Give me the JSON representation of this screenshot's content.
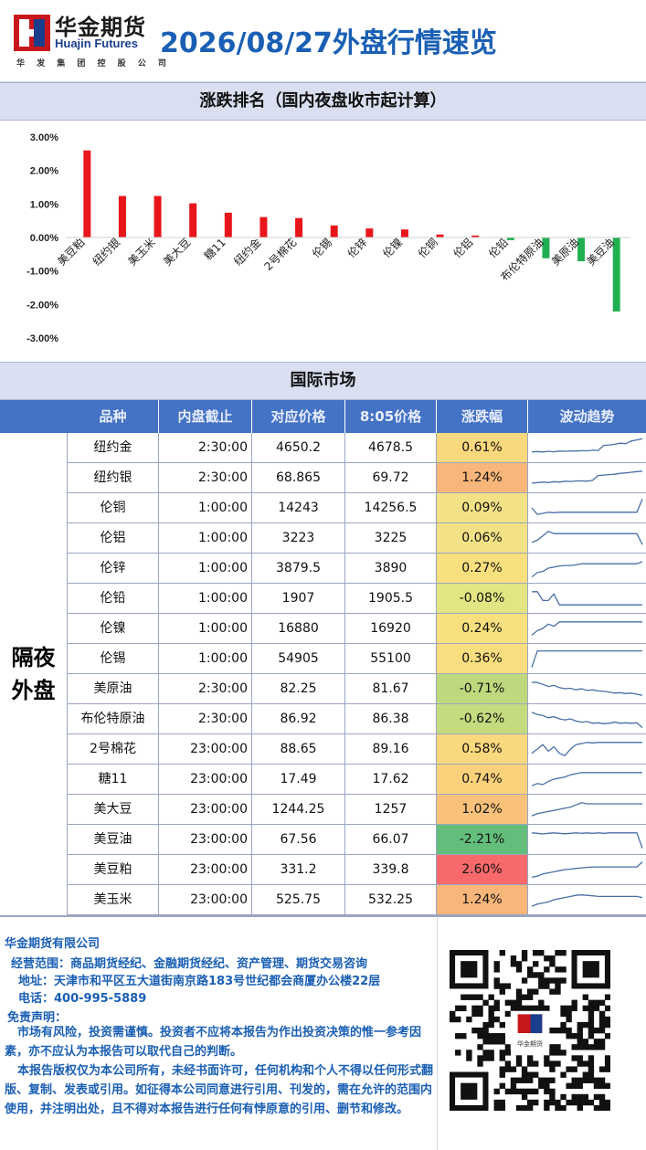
{
  "header": {
    "logo_cn": "华金期货",
    "logo_en": "Huajin Futures",
    "logo_sub": "华 发 集 团 控 股 公 司",
    "title": "2026/08/27外盘行情速览"
  },
  "ranking_section": {
    "title": "涨跌排名（国内夜盘收市起计算）"
  },
  "chart_data": {
    "type": "bar",
    "title": "",
    "xlabel": "",
    "ylabel": "",
    "ylim": [
      -3.0,
      3.0
    ],
    "yticks": [
      "3.00%",
      "2.00%",
      "1.00%",
      "0.00%",
      "-1.00%",
      "-2.00%",
      "-3.00%"
    ],
    "categories": [
      "美豆粕",
      "纽约银",
      "美玉米",
      "美大豆",
      "糖11",
      "纽约金",
      "2号棉花",
      "伦锡",
      "伦锌",
      "伦镍",
      "伦铜",
      "伦铝",
      "伦铅",
      "布伦特原油",
      "美原油",
      "美豆油"
    ],
    "values": [
      2.6,
      1.24,
      1.24,
      1.02,
      0.74,
      0.61,
      0.58,
      0.36,
      0.27,
      0.24,
      0.09,
      0.06,
      -0.08,
      -0.62,
      -0.71,
      -2.21
    ],
    "colors": {
      "up": "#e8161b",
      "down": "#20b052"
    },
    "grid": false
  },
  "intl_section": {
    "title": "国际市场"
  },
  "table": {
    "headers": [
      "品种",
      "内盘截止",
      "对应价格",
      "8:05价格",
      "涨跌幅",
      "波动趋势"
    ],
    "group_label_line1": "隔夜",
    "group_label_line2": "外盘",
    "rows": [
      {
        "name": "纽约金",
        "cutoff": "2:30:00",
        "ref": "4650.2",
        "p805": "4678.5",
        "chg": "0.61%",
        "color": "#fad87d",
        "trend": [
          0.3,
          0.32,
          0.3,
          0.33,
          0.31,
          0.34,
          0.33,
          0.35,
          0.34,
          0.36,
          0.35,
          0.38,
          0.37,
          0.6,
          0.62,
          0.65,
          0.7,
          0.68,
          0.8,
          0.85,
          0.9
        ]
      },
      {
        "name": "纽约银",
        "cutoff": "2:30:00",
        "ref": "68.865",
        "p805": "69.72",
        "chg": "1.24%",
        "color": "#f8b67a",
        "trend": [
          0.25,
          0.28,
          0.3,
          0.28,
          0.32,
          0.3,
          0.34,
          0.33,
          0.35,
          0.36,
          0.34,
          0.38,
          0.6,
          0.62,
          0.64,
          0.66,
          0.7,
          0.72,
          0.75,
          0.78,
          0.8
        ]
      },
      {
        "name": "伦铜",
        "cutoff": "1:00:00",
        "ref": "14243",
        "p805": "14256.5",
        "chg": "0.09%",
        "color": "#f3e285",
        "trend": [
          0.5,
          0.2,
          0.25,
          0.3,
          0.28,
          0.3,
          0.3,
          0.3,
          0.3,
          0.3,
          0.3,
          0.3,
          0.3,
          0.3,
          0.3,
          0.3,
          0.3,
          0.3,
          0.3,
          0.3,
          0.9
        ]
      },
      {
        "name": "伦铝",
        "cutoff": "1:00:00",
        "ref": "3223",
        "p805": "3225",
        "chg": "0.06%",
        "color": "#f3e285",
        "trend": [
          0.3,
          0.4,
          0.6,
          0.8,
          0.7,
          0.7,
          0.7,
          0.7,
          0.7,
          0.7,
          0.7,
          0.7,
          0.7,
          0.7,
          0.7,
          0.7,
          0.7,
          0.7,
          0.7,
          0.7,
          0.2
        ]
      },
      {
        "name": "伦锌",
        "cutoff": "1:00:00",
        "ref": "3879.5",
        "p805": "3890",
        "chg": "0.27%",
        "color": "#f9e07e",
        "trend": [
          0.1,
          0.3,
          0.35,
          0.5,
          0.55,
          0.6,
          0.62,
          0.62,
          0.65,
          0.7,
          0.7,
          0.7,
          0.7,
          0.7,
          0.7,
          0.7,
          0.7,
          0.7,
          0.7,
          0.7,
          0.8
        ]
      },
      {
        "name": "伦铅",
        "cutoff": "1:00:00",
        "ref": "1907",
        "p805": "1905.5",
        "chg": "-0.08%",
        "color": "#e2e582",
        "trend": [
          0.8,
          0.8,
          0.4,
          0.4,
          0.7,
          0.2,
          0.2,
          0.2,
          0.2,
          0.2,
          0.2,
          0.2,
          0.2,
          0.2,
          0.2,
          0.2,
          0.2,
          0.2,
          0.2,
          0.2,
          0.2
        ]
      },
      {
        "name": "伦镍",
        "cutoff": "1:00:00",
        "ref": "16880",
        "p805": "16920",
        "chg": "0.24%",
        "color": "#f8e07f",
        "trend": [
          0.2,
          0.4,
          0.5,
          0.7,
          0.6,
          0.8,
          0.8,
          0.8,
          0.8,
          0.8,
          0.8,
          0.8,
          0.8,
          0.8,
          0.8,
          0.8,
          0.8,
          0.8,
          0.8,
          0.8,
          0.8
        ]
      },
      {
        "name": "伦锡",
        "cutoff": "1:00:00",
        "ref": "54905",
        "p805": "55100",
        "chg": "0.36%",
        "color": "#fadd7e",
        "trend": [
          0.1,
          0.85,
          0.85,
          0.85,
          0.85,
          0.85,
          0.85,
          0.85,
          0.85,
          0.85,
          0.85,
          0.85,
          0.85,
          0.85,
          0.85,
          0.85,
          0.85,
          0.85,
          0.85,
          0.85,
          0.85
        ]
      },
      {
        "name": "美原油",
        "cutoff": "2:30:00",
        "ref": "82.25",
        "p805": "81.67",
        "chg": "-0.71%",
        "color": "#bed97d",
        "trend": [
          0.8,
          0.78,
          0.7,
          0.6,
          0.65,
          0.55,
          0.5,
          0.52,
          0.45,
          0.5,
          0.42,
          0.45,
          0.4,
          0.38,
          0.35,
          0.3,
          0.32,
          0.28,
          0.3,
          0.25,
          0.2
        ]
      },
      {
        "name": "布伦特原油",
        "cutoff": "2:30:00",
        "ref": "86.92",
        "p805": "86.38",
        "chg": "-0.62%",
        "color": "#c5db7f",
        "trend": [
          0.8,
          0.7,
          0.65,
          0.55,
          0.6,
          0.5,
          0.45,
          0.5,
          0.4,
          0.35,
          0.38,
          0.3,
          0.32,
          0.28,
          0.3,
          0.35,
          0.3,
          0.32,
          0.3,
          0.32,
          0.1
        ]
      },
      {
        "name": "2号棉花",
        "cutoff": "23:00:00",
        "ref": "88.65",
        "p805": "89.16",
        "chg": "0.58%",
        "color": "#fad87d",
        "trend": [
          0.3,
          0.5,
          0.7,
          0.4,
          0.6,
          0.3,
          0.2,
          0.5,
          0.7,
          0.75,
          0.8,
          0.78,
          0.8,
          0.8,
          0.8,
          0.8,
          0.8,
          0.8,
          0.8,
          0.8,
          0.8
        ]
      },
      {
        "name": "糖11",
        "cutoff": "23:00:00",
        "ref": "17.49",
        "p805": "17.62",
        "chg": "0.74%",
        "color": "#fbd17b",
        "trend": [
          0.2,
          0.3,
          0.25,
          0.4,
          0.5,
          0.55,
          0.6,
          0.7,
          0.75,
          0.8,
          0.8,
          0.8,
          0.8,
          0.8,
          0.8,
          0.8,
          0.8,
          0.8,
          0.8,
          0.8,
          0.8
        ]
      },
      {
        "name": "美大豆",
        "cutoff": "23:00:00",
        "ref": "1244.25",
        "p805": "1257",
        "chg": "1.02%",
        "color": "#f9c17a",
        "trend": [
          0.2,
          0.3,
          0.35,
          0.4,
          0.45,
          0.5,
          0.55,
          0.6,
          0.7,
          0.8,
          0.75,
          0.75,
          0.75,
          0.75,
          0.75,
          0.75,
          0.75,
          0.75,
          0.75,
          0.75,
          0.75
        ]
      },
      {
        "name": "美豆油",
        "cutoff": "23:00:00",
        "ref": "67.56",
        "p805": "66.07",
        "chg": "-2.21%",
        "color": "#63be7b",
        "trend": [
          0.8,
          0.78,
          0.75,
          0.78,
          0.8,
          0.78,
          0.76,
          0.78,
          0.8,
          0.78,
          0.8,
          0.78,
          0.8,
          0.78,
          0.8,
          0.8,
          0.8,
          0.8,
          0.8,
          0.8,
          0.1
        ]
      },
      {
        "name": "美豆粕",
        "cutoff": "23:00:00",
        "ref": "331.2",
        "p805": "339.8",
        "chg": "2.60%",
        "color": "#f8696b",
        "trend": [
          0.15,
          0.2,
          0.3,
          0.35,
          0.4,
          0.45,
          0.5,
          0.52,
          0.55,
          0.58,
          0.6,
          0.62,
          0.62,
          0.62,
          0.62,
          0.62,
          0.62,
          0.62,
          0.62,
          0.62,
          0.85
        ]
      },
      {
        "name": "美玉米",
        "cutoff": "23:00:00",
        "ref": "525.75",
        "p805": "532.25",
        "chg": "1.24%",
        "color": "#f8b67a",
        "trend": [
          0.2,
          0.3,
          0.35,
          0.4,
          0.5,
          0.55,
          0.6,
          0.65,
          0.7,
          0.72,
          0.7,
          0.68,
          0.65,
          0.65,
          0.65,
          0.65,
          0.65,
          0.65,
          0.65,
          0.65,
          0.6
        ]
      }
    ]
  },
  "footer": {
    "company": "华金期货有限公司",
    "scope": "经营范围：商品期货经纪、金融期货经纪、资产管理、期货交易咨询",
    "address": "地址：天津市和平区五大道街南京路183号世纪都会商厦办公楼22层",
    "phone": "电话：400-995-5889",
    "disclaimer_title": "免责声明：",
    "disclaimer_1": "市场有风险，投资需谨慎。投资者不应将本报告为作出投资决策的惟一参考因素，亦不应认为本报告可以取代自己的判断。",
    "disclaimer_2": "本报告版权仅为本公司所有，未经书面许可，任何机构和个人不得以任何形式翻版、复制、发表或引用。如征得本公司同意进行引用、刊发的，需在允许的范围内使用，并注明出处，且不得对本报告进行任何有悖原意的引用、删节和修改。",
    "qr_logo_text": "华金期货"
  }
}
